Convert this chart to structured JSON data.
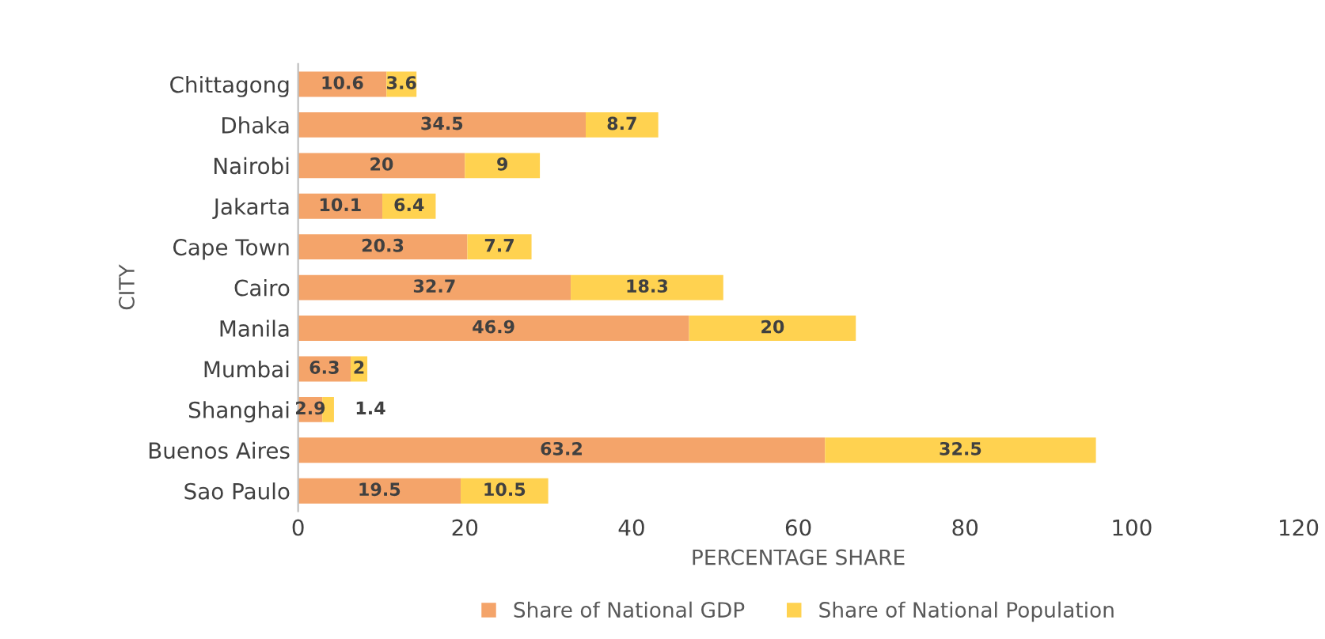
{
  "chart_data": {
    "type": "bar",
    "orientation": "horizontal",
    "stacked": true,
    "xlabel": "PERCENTAGE SHARE",
    "ylabel": "CITY",
    "categories": [
      "Chittagong",
      "Dhaka",
      "Nairobi",
      "Jakarta",
      "Cape Town",
      "Cairo",
      "Manila",
      "Mumbai",
      "Shanghai",
      "Buenos Aires",
      "Sao Paulo"
    ],
    "series": [
      {
        "name": "Share of National GDP",
        "color": "#f4a46a",
        "values": [
          10.6,
          34.5,
          20,
          10.1,
          20.3,
          32.7,
          46.9,
          6.3,
          2.9,
          63.2,
          19.5
        ]
      },
      {
        "name": "Share of National Population",
        "color": "#ffd250",
        "values": [
          3.6,
          8.7,
          9,
          6.4,
          7.7,
          18.3,
          20,
          2,
          1.4,
          32.5,
          10.5
        ]
      }
    ],
    "xlim": [
      0,
      120
    ],
    "xticks": [
      0,
      20,
      40,
      60,
      80,
      100,
      120
    ],
    "grid": false,
    "legend": "bottom",
    "data_labels": true
  }
}
